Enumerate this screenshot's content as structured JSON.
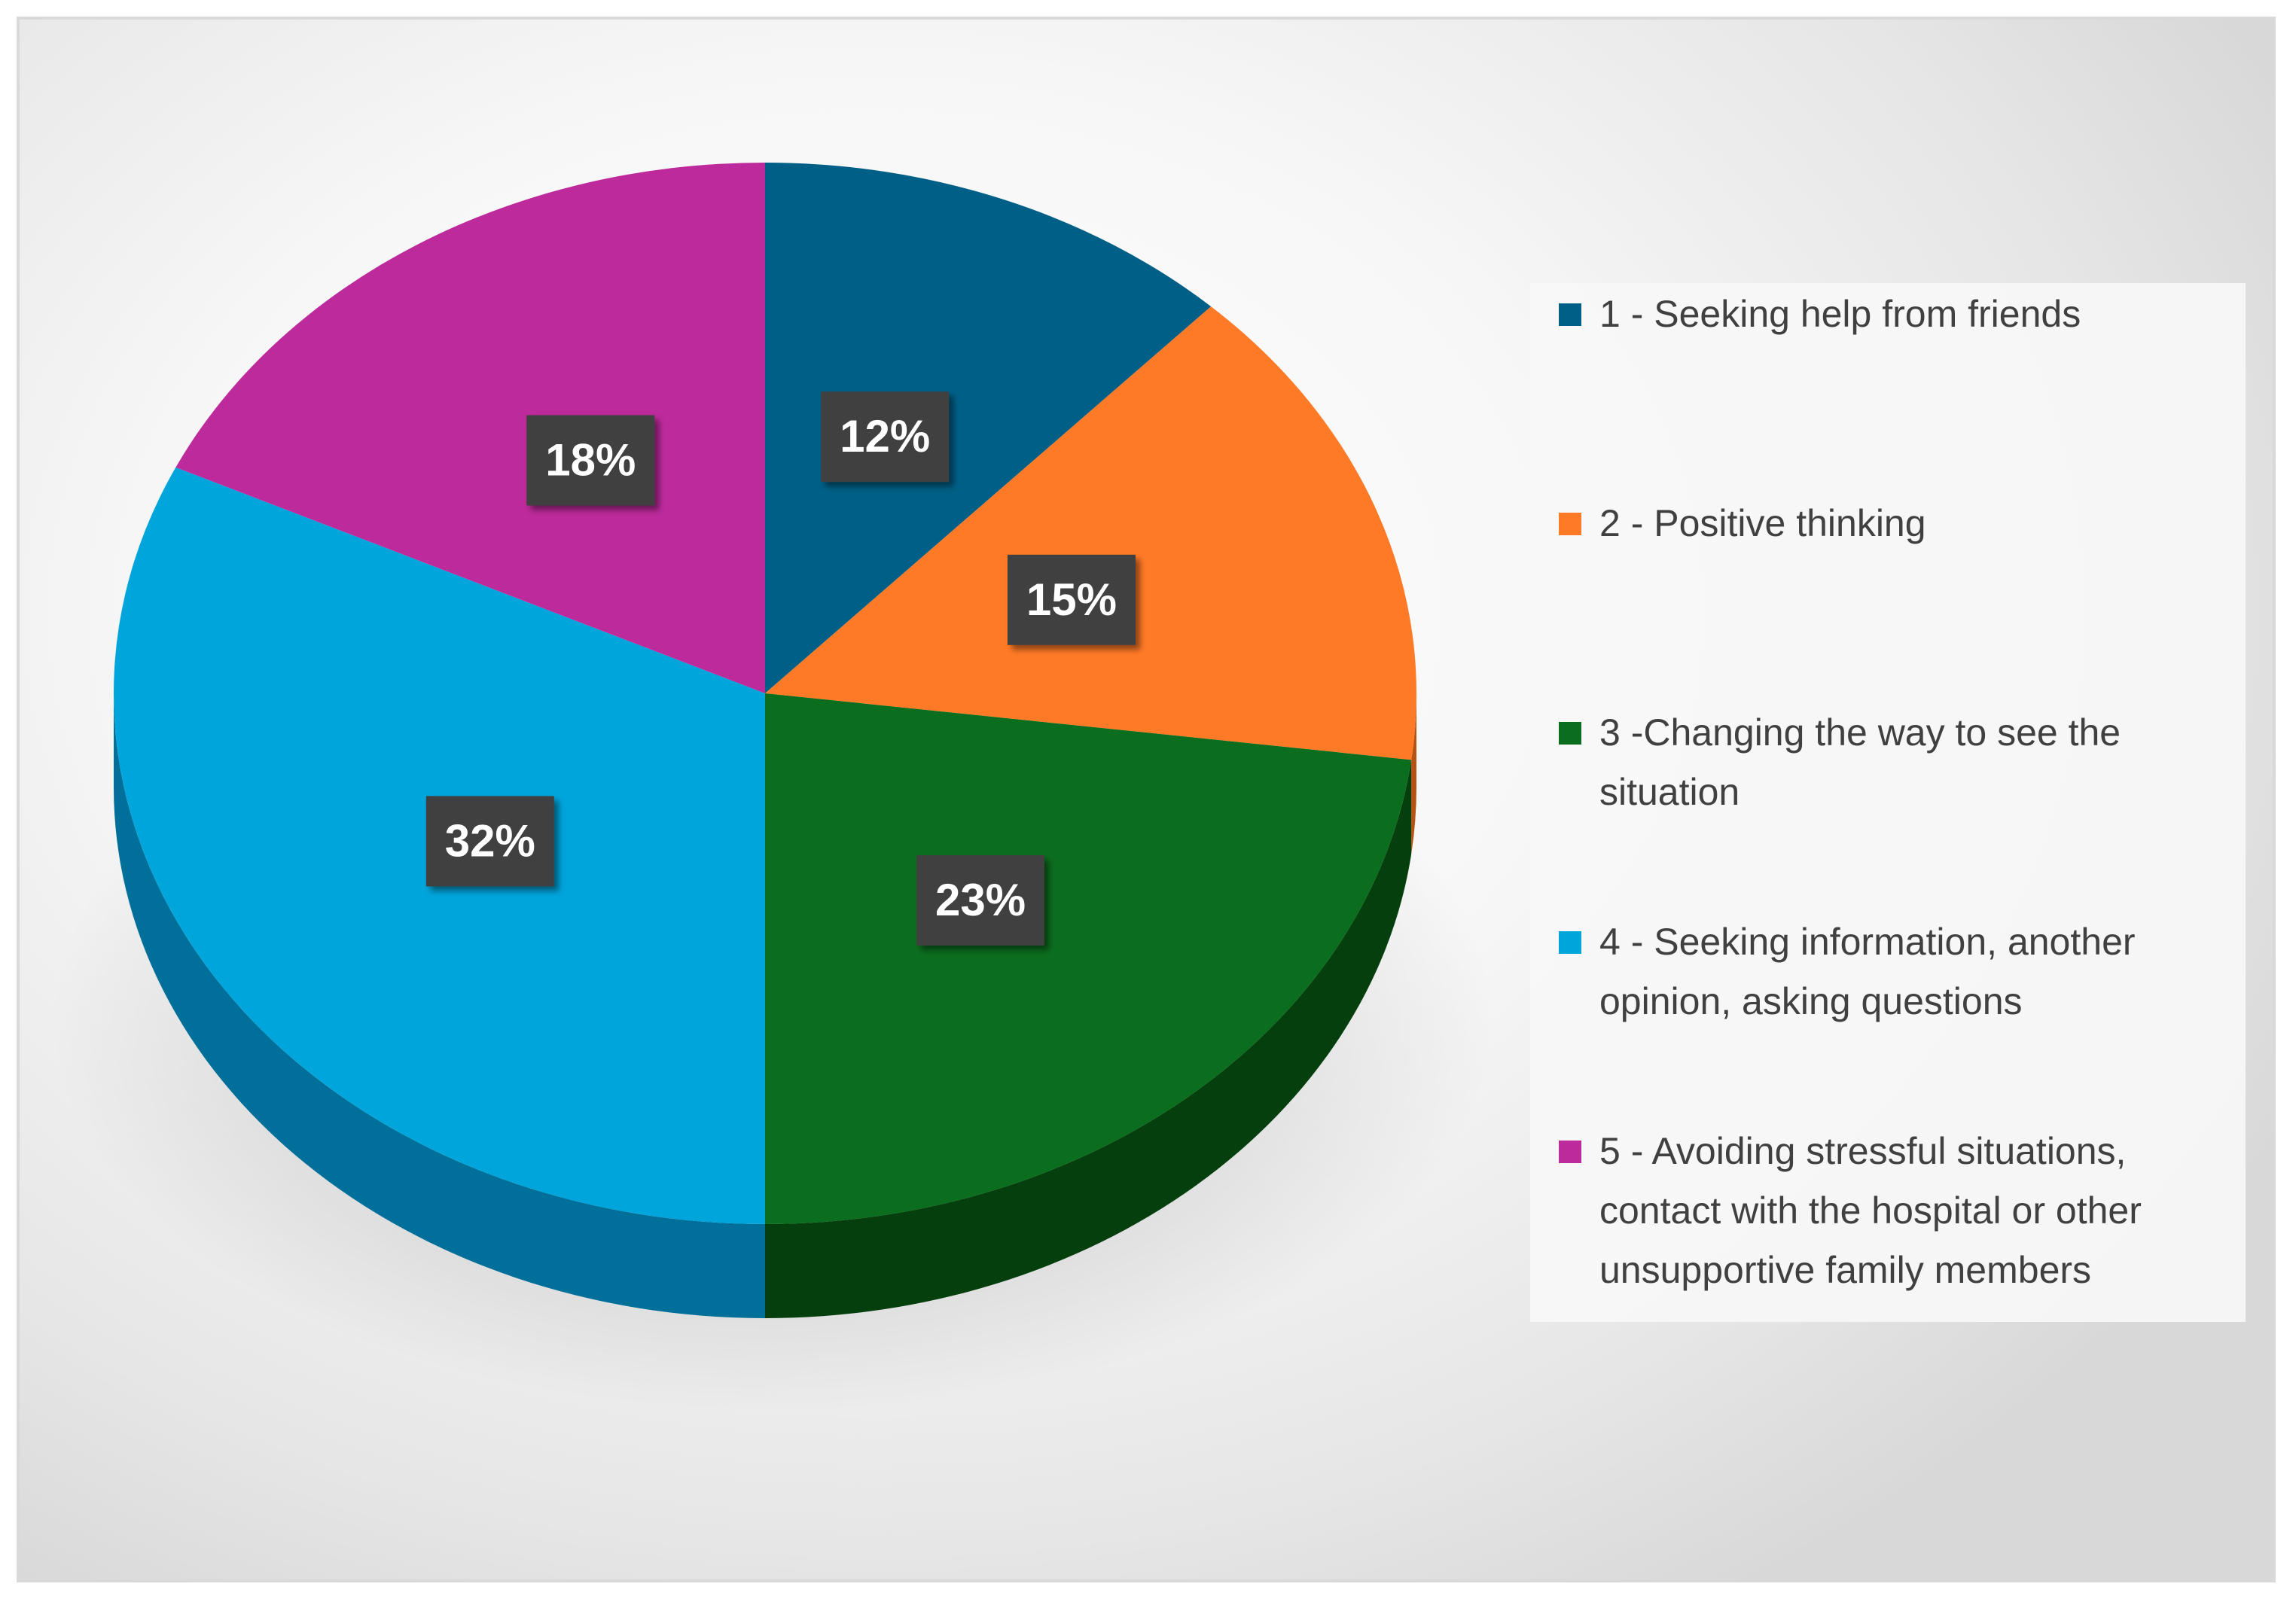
{
  "chart_data": {
    "type": "pie",
    "title": "",
    "categories": [
      "1 - Seeking help from friends",
      "2 - Positive thinking",
      "3 -Changing the way to see the situation",
      "4 - Seeking information, another opinion, asking questions",
      "5 - Avoiding stressful situations, contact with the hospital or other unsupportive family members"
    ],
    "values": [
      12,
      15,
      23,
      32,
      18
    ],
    "data_labels": [
      "12%",
      "15%",
      "23%",
      "32%",
      "18%"
    ],
    "colors": [
      "#005f86",
      "#ff7a26",
      "#0b6e1e",
      "#00a5dc",
      "#bd2a9b"
    ],
    "side_colors": [
      "#003f5c",
      "#b85212",
      "#053f0d",
      "#006f99",
      "#7d1a66"
    ],
    "style": "3d-tilted",
    "legend_position": "right"
  }
}
